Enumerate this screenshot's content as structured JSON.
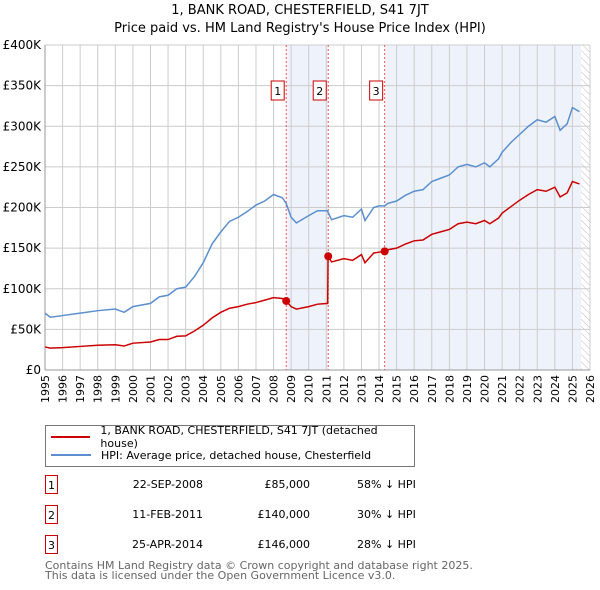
{
  "chart_data": {
    "type": "line",
    "title": "1, BANK ROAD, CHESTERFIELD, S41 7JT",
    "subtitle": "Price paid vs. HM Land Registry's House Price Index (HPI)",
    "xlim": [
      1995,
      2026
    ],
    "ylim": [
      0,
      400000
    ],
    "y_ticks": [
      0,
      50000,
      100000,
      150000,
      200000,
      250000,
      300000,
      350000,
      400000
    ],
    "y_tick_labels": [
      "£0",
      "£50K",
      "£100K",
      "£150K",
      "£200K",
      "£250K",
      "£300K",
      "£350K",
      "£400K"
    ],
    "x_ticks": [
      "1995",
      "1996",
      "1997",
      "1998",
      "1999",
      "2000",
      "2001",
      "2002",
      "2003",
      "2004",
      "2005",
      "2006",
      "2007",
      "2008",
      "2009",
      "2010",
      "2011",
      "2012",
      "2013",
      "2014",
      "2015",
      "2016",
      "2017",
      "2018",
      "2019",
      "2020",
      "2021",
      "2022",
      "2023",
      "2024",
      "2025",
      "2026"
    ],
    "grid": true,
    "legend_placement": "below",
    "series": [
      {
        "name": "1, BANK ROAD, CHESTERFIELD, S41 7JT (detached house)",
        "color": "#cc0000",
        "x": [
          1995,
          1995.3,
          1996,
          1997,
          1998,
          1999,
          1999.5,
          2000,
          2001,
          2001.5,
          2002,
          2002.5,
          2003,
          2003.5,
          2004,
          2004.5,
          2005,
          2005.5,
          2006,
          2006.5,
          2007,
          2007.5,
          2008,
          2008.5,
          2008.72,
          2009,
          2009.3,
          2010,
          2010.5,
          2011.08,
          2011.1,
          2011.3,
          2012,
          2012.5,
          2013,
          2013.2,
          2013.7,
          2014,
          2014.32,
          2014.5,
          2015,
          2015.5,
          2016,
          2016.5,
          2017,
          2017.5,
          2018,
          2018.5,
          2019,
          2019.5,
          2020,
          2020.3,
          2020.8,
          2021,
          2021.5,
          2022,
          2022.5,
          2023,
          2023.5,
          2024,
          2024.3,
          2024.7,
          2025,
          2025.4
        ],
        "y": [
          28400,
          27000,
          27500,
          29000,
          30500,
          31000,
          29500,
          33000,
          34500,
          37500,
          37500,
          41500,
          42000,
          48000,
          55000,
          64000,
          71000,
          76000,
          78000,
          81000,
          83000,
          86000,
          89000,
          88000,
          85000,
          78000,
          75000,
          78000,
          81000,
          82000,
          140000,
          133000,
          137000,
          135000,
          142000,
          132000,
          144000,
          145000,
          146000,
          148000,
          150000,
          155000,
          159000,
          160000,
          167000,
          170000,
          173000,
          180000,
          182000,
          180000,
          184000,
          180000,
          187000,
          193000,
          201000,
          209000,
          216000,
          222000,
          220000,
          225000,
          213000,
          218000,
          232000,
          229000
        ]
      },
      {
        "name": "HPI: Average price, detached house, Chesterfield",
        "color": "#5b8fd0",
        "x": [
          1995,
          1995.3,
          1996,
          1997,
          1998,
          1999,
          1999.5,
          2000,
          2001,
          2001.5,
          2002,
          2002.5,
          2003,
          2003.5,
          2004,
          2004.5,
          2005,
          2005.5,
          2006,
          2006.5,
          2007,
          2007.5,
          2008,
          2008.5,
          2008.72,
          2009,
          2009.3,
          2010,
          2010.5,
          2011.08,
          2011.1,
          2011.3,
          2012,
          2012.5,
          2013,
          2013.2,
          2013.7,
          2014,
          2014.32,
          2014.5,
          2015,
          2015.5,
          2016,
          2016.5,
          2017,
          2017.5,
          2018,
          2018.5,
          2019,
          2019.5,
          2020,
          2020.3,
          2020.8,
          2021,
          2021.5,
          2022,
          2022.5,
          2023,
          2023.5,
          2024,
          2024.3,
          2024.7,
          2025,
          2025.4
        ],
        "y": [
          70000,
          65000,
          67000,
          70000,
          73000,
          75000,
          71000,
          78000,
          82000,
          90000,
          92000,
          100000,
          102000,
          115000,
          132000,
          155000,
          170000,
          183000,
          188000,
          195000,
          203000,
          208000,
          216000,
          212000,
          205000,
          188000,
          181000,
          190000,
          196000,
          196000,
          194000,
          185000,
          190000,
          188000,
          198000,
          184000,
          200000,
          202000,
          202000,
          205000,
          208000,
          215000,
          220000,
          222000,
          232000,
          236000,
          240000,
          250000,
          253000,
          250000,
          255000,
          250000,
          260000,
          268000,
          280000,
          290000,
          300000,
          308000,
          305000,
          312000,
          295000,
          303000,
          323000,
          318000
        ]
      }
    ],
    "sales": [
      {
        "num": "1",
        "date": "22-SEP-2008",
        "price": "£85,000",
        "hpi": "58% ↓ HPI",
        "x": 2008.72,
        "y": 85000
      },
      {
        "num": "2",
        "date": "11-FEB-2011",
        "price": "£140,000",
        "hpi": "30% ↓ HPI",
        "x": 2011.11,
        "y": 140000
      },
      {
        "num": "3",
        "date": "25-APR-2014",
        "price": "£146,000",
        "hpi": "28% ↓ HPI",
        "x": 2014.32,
        "y": 146000
      }
    ],
    "shaded": [
      [
        2008.72,
        2011.11
      ],
      [
        2014.32,
        2025.5
      ]
    ],
    "forecast_start": 2025.5,
    "colors": {
      "grid": "#cccccc",
      "shade": "#eef3fb"
    }
  },
  "footer": {
    "line1": "Contains HM Land Registry data © Crown copyright and database right 2025.",
    "line2": "This data is licensed under the Open Government Licence v3.0."
  }
}
